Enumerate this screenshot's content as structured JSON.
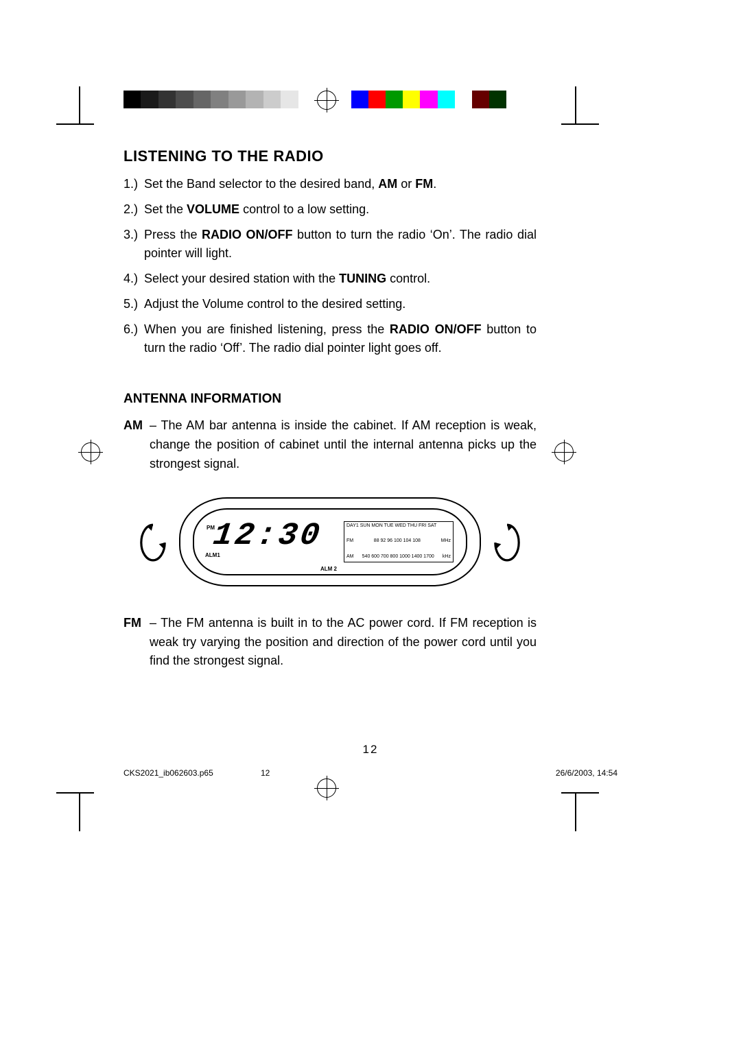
{
  "print_bars": {
    "left_colors": [
      "#000000",
      "#1a1a1a",
      "#333333",
      "#4d4d4d",
      "#666666",
      "#808080",
      "#999999",
      "#b3b3b3",
      "#cccccc",
      "#e6e6e6",
      "#ffffff"
    ],
    "right_colors": [
      "#0000ff",
      "#ff0000",
      "#009900",
      "#ffff00",
      "#ff00ff",
      "#00ffff",
      "#ffffff",
      "#660000",
      "#003300"
    ]
  },
  "headings": {
    "main": "LISTENING TO THE RADIO",
    "antenna": "ANTENNA INFORMATION"
  },
  "steps": [
    {
      "n": "1.)",
      "pre": "Set the Band selector to the desired band, ",
      "b1": "AM",
      "mid": " or ",
      "b2": "FM",
      "post": "."
    },
    {
      "n": "2.)",
      "pre": "Set the ",
      "b1": "VOLUME",
      "mid": "",
      "b2": "",
      "post": " control to a low setting."
    },
    {
      "n": "3.)",
      "pre": "Press the ",
      "b1": "RADIO ON/OFF",
      "mid": "",
      "b2": "",
      "post": " button to turn the radio ‘On’.  The radio dial pointer will light."
    },
    {
      "n": "4.)",
      "pre": "Select your desired station with the ",
      "b1": "TUNING",
      "mid": "",
      "b2": "",
      "post": " control."
    },
    {
      "n": "5.)",
      "pre": "Adjust the Volume control to the desired setting.",
      "b1": "",
      "mid": "",
      "b2": "",
      "post": ""
    },
    {
      "n": "6.)",
      "pre": "When you are finished listening, press the ",
      "b1": "RADIO ON/OFF",
      "mid": "",
      "b2": "",
      "post": " button to turn the radio ‘Off’.  The radio dial pointer light goes off."
    }
  ],
  "antenna": {
    "am_label": "AM",
    "am_text": " – The AM bar antenna is inside the cabinet. If AM reception is weak, change the position of cabinet until the internal antenna picks up the strongest signal.",
    "fm_label": "FM",
    "fm_text": " – The FM antenna is built in to the AC power cord. If FM reception is weak try varying the position and direction of the power cord until you find the strongest signal."
  },
  "radio": {
    "clock_display": "12:30",
    "pm_label": "PM",
    "alm1_label": "ALM1",
    "alm2_label": "ALM 2",
    "days_row": "DAY1   SUN MON TUE WED THU FRI SAT",
    "fm_row_label": "FM",
    "fm_ticks": "88  92  96 100 104 108",
    "fm_unit": "MHz",
    "am_row_label": "AM",
    "am_ticks": "540  600   700 800  1000   1400 1700",
    "am_unit": "kHz"
  },
  "page_number": "12",
  "footer": {
    "file": "CKS2021_ib062603.p65",
    "page": "12",
    "timestamp": "26/6/2003, 14:54"
  }
}
